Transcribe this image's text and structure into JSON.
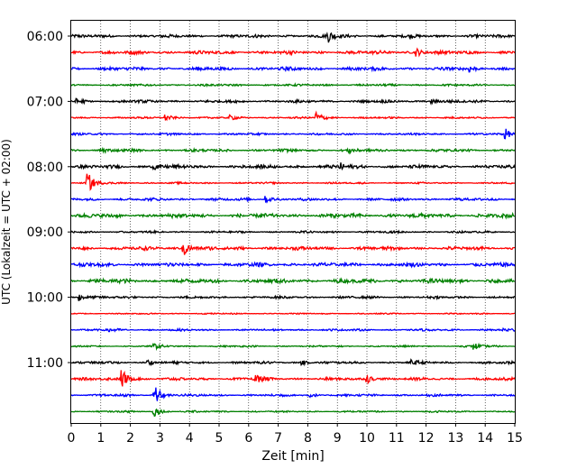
{
  "chart_data": {
    "type": "line",
    "title": "",
    "xlabel": "Zeit  [min]",
    "ylabel": "UTC (Lokalzeit = UTC + 02:00)",
    "xlim": [
      0,
      15
    ],
    "x_ticks": [
      0,
      1,
      2,
      3,
      4,
      5,
      6,
      7,
      8,
      9,
      10,
      11,
      12,
      13,
      14,
      15
    ],
    "x_tick_labels": [
      "0",
      "1",
      "2",
      "3",
      "4",
      "5",
      "6",
      "7",
      "8",
      "9",
      "10",
      "11",
      "12",
      "13",
      "14",
      "15"
    ],
    "grid": "vertical dotted",
    "y_tick_labels": [
      "06:00",
      "07:00",
      "08:00",
      "09:00",
      "10:00",
      "11:00"
    ],
    "trace_colors": [
      "#000000",
      "#ff0000",
      "#0000ff",
      "#008000"
    ],
    "traces_per_hour": 4,
    "minutes_per_trace": 15,
    "traces": [
      {
        "start": "06:00",
        "level": 0.45,
        "events": [
          {
            "t": 8.7,
            "amp": 1.8
          }
        ]
      },
      {
        "start": "06:15",
        "level": 0.5,
        "events": [
          {
            "t": 11.7,
            "amp": 1.2
          }
        ]
      },
      {
        "start": "06:30",
        "level": 0.5,
        "events": [
          {
            "t": 13.5,
            "amp": 0.9
          }
        ]
      },
      {
        "start": "06:45",
        "level": 0.3,
        "events": []
      },
      {
        "start": "07:00",
        "level": 0.4,
        "events": [
          {
            "t": 0.2,
            "amp": 0.8
          },
          {
            "t": 12.2,
            "amp": 0.8
          }
        ]
      },
      {
        "start": "07:15",
        "level": 0.25,
        "events": [
          {
            "t": 3.2,
            "amp": 1.1
          },
          {
            "t": 5.4,
            "amp": 0.7
          },
          {
            "t": 8.3,
            "amp": 2.2
          }
        ]
      },
      {
        "start": "07:30",
        "level": 0.3,
        "events": [
          {
            "t": 14.7,
            "amp": 1.5
          }
        ]
      },
      {
        "start": "07:45",
        "level": 0.4,
        "events": [
          {
            "t": 1.0,
            "amp": 0.8
          },
          {
            "t": 9.4,
            "amp": 0.8
          }
        ]
      },
      {
        "start": "08:00",
        "level": 0.5,
        "events": [
          {
            "t": 2.8,
            "amp": 1.0
          },
          {
            "t": 9.1,
            "amp": 1.1
          }
        ]
      },
      {
        "start": "08:15",
        "level": 0.25,
        "events": [
          {
            "t": 0.55,
            "amp": 3.8
          }
        ]
      },
      {
        "start": "08:30",
        "level": 0.4,
        "events": [
          {
            "t": 6.6,
            "amp": 1.1
          }
        ]
      },
      {
        "start": "08:45",
        "level": 0.6,
        "events": []
      },
      {
        "start": "09:00",
        "level": 0.3,
        "events": []
      },
      {
        "start": "09:15",
        "level": 0.5,
        "events": [
          {
            "t": 3.8,
            "amp": 3.2
          }
        ]
      },
      {
        "start": "09:30",
        "level": 0.55,
        "events": []
      },
      {
        "start": "09:45",
        "level": 0.6,
        "events": []
      },
      {
        "start": "10:00",
        "level": 0.35,
        "events": [
          {
            "t": 0.3,
            "amp": 1.3
          }
        ]
      },
      {
        "start": "10:15",
        "level": 0.2,
        "events": []
      },
      {
        "start": "10:30",
        "level": 0.3,
        "events": [
          {
            "t": 1.3,
            "amp": 0.6
          },
          {
            "t": 14.6,
            "amp": 0.6
          }
        ]
      },
      {
        "start": "10:45",
        "level": 0.25,
        "events": [
          {
            "t": 2.8,
            "amp": 0.9
          },
          {
            "t": 13.6,
            "amp": 1.3
          }
        ]
      },
      {
        "start": "11:00",
        "level": 0.35,
        "events": [
          {
            "t": 2.6,
            "amp": 0.9
          },
          {
            "t": 7.8,
            "amp": 0.8
          },
          {
            "t": 11.5,
            "amp": 0.8
          }
        ]
      },
      {
        "start": "11:15",
        "level": 0.4,
        "events": [
          {
            "t": 1.7,
            "amp": 3.8
          },
          {
            "t": 6.2,
            "amp": 1.5
          },
          {
            "t": 10.0,
            "amp": 1.6
          }
        ]
      },
      {
        "start": "11:30",
        "level": 0.35,
        "events": [
          {
            "t": 2.8,
            "amp": 4.0
          },
          {
            "t": 8.1,
            "amp": 0.7
          }
        ]
      },
      {
        "start": "11:45",
        "level": 0.25,
        "events": [
          {
            "t": 2.8,
            "amp": 1.8
          }
        ]
      }
    ]
  }
}
